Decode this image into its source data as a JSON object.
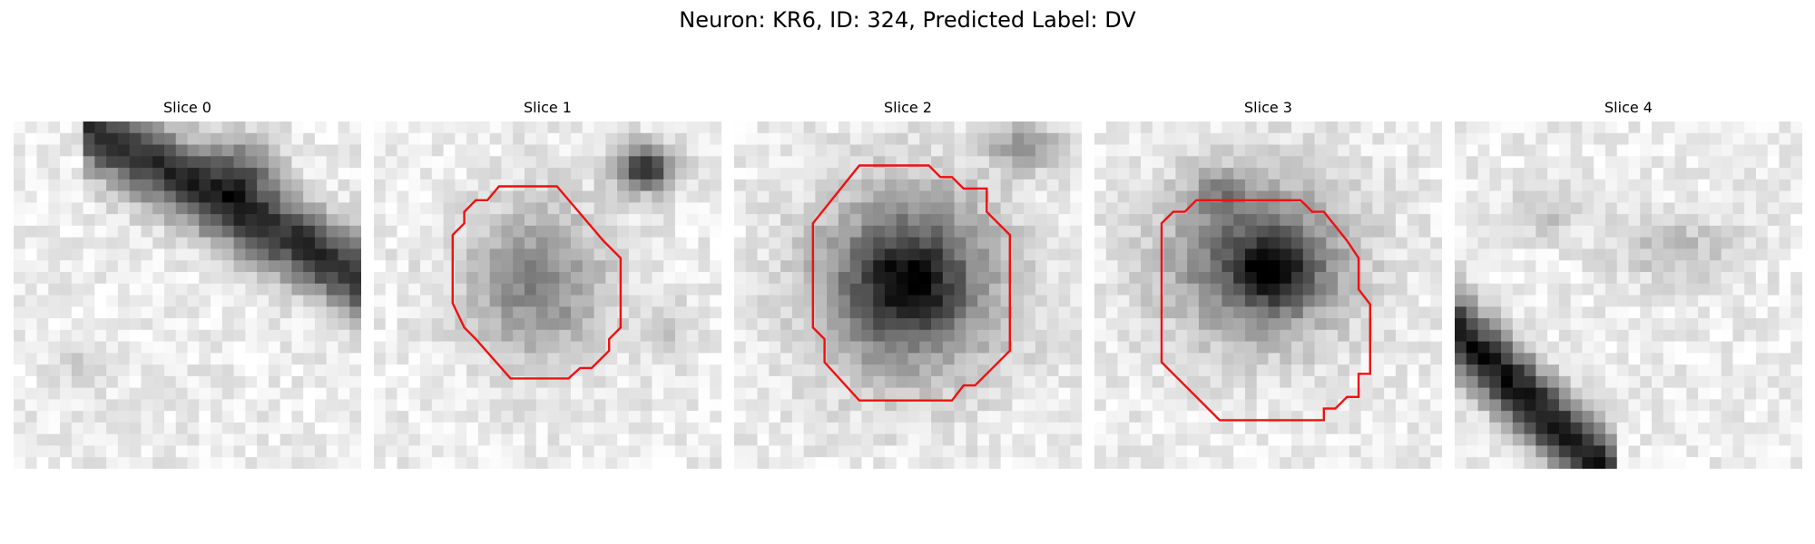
{
  "figure": {
    "title": "Neuron: KR6, ID: 324, Predicted Label: DV"
  },
  "panels": [
    {
      "title": "Slice 0"
    },
    {
      "title": "Slice 1"
    },
    {
      "title": "Slice 2"
    },
    {
      "title": "Slice 3"
    },
    {
      "title": "Slice 4"
    }
  ],
  "colors": {
    "contour": "#ee1111",
    "colormap": "gray"
  }
}
